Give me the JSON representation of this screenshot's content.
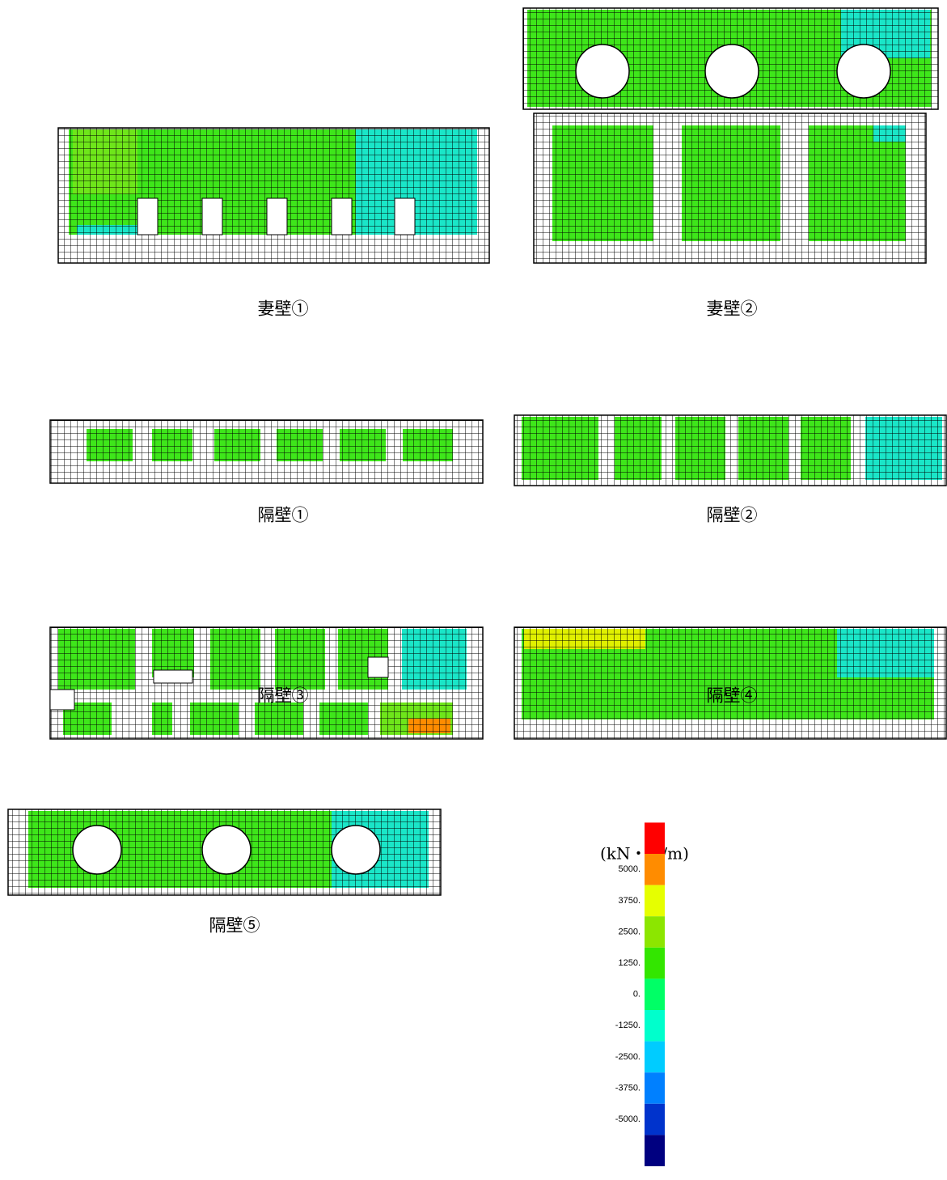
{
  "panels": [
    {
      "label": "妻壁①"
    },
    {
      "label": "妻壁②"
    },
    {
      "label": "隔壁①"
    },
    {
      "label": "隔壁②"
    },
    {
      "label": "隔壁③"
    },
    {
      "label": "隔壁④"
    },
    {
      "label": "隔壁⑤"
    }
  ],
  "legend": {
    "unit": "(kN・m/m)",
    "colors": [
      "#ff0000",
      "#ff8c00",
      "#e6ff00",
      "#8ce600",
      "#33e600",
      "#00ff66",
      "#00ffcc",
      "#00ccff",
      "#0080ff",
      "#0033cc",
      "#000080"
    ],
    "ticks": [
      {
        "value": 5000,
        "label": "5000."
      },
      {
        "value": 3750,
        "label": "3750."
      },
      {
        "value": 2500,
        "label": "2500."
      },
      {
        "value": 1250,
        "label": "1250."
      },
      {
        "value": 0,
        "label": "0."
      },
      {
        "value": -1250,
        "label": "-1250."
      },
      {
        "value": -2500,
        "label": "-2500."
      },
      {
        "value": -3750,
        "label": "-3750."
      },
      {
        "value": -5000,
        "label": "-5000."
      }
    ]
  }
}
